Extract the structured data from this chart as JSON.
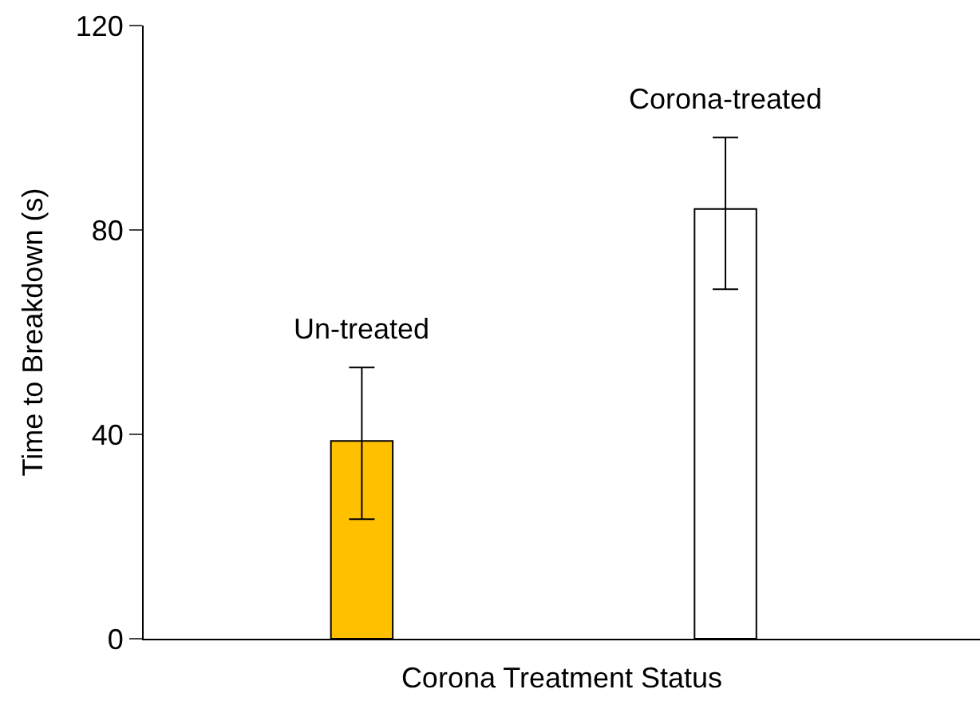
{
  "chart_data": {
    "type": "bar",
    "categories": [
      null,
      null
    ],
    "values": [
      38.7,
      84.1
    ],
    "colors": [
      "#ffc000",
      "#ffffff"
    ],
    "errors": [
      [
        23.4,
        53.1
      ],
      [
        68.4,
        98.1
      ]
    ],
    "ylim": [
      0,
      120
    ],
    "yticks": [
      0,
      40,
      80,
      120
    ],
    "xlabel": "Corona Treatment Status",
    "ylabel": "Time to Breakdown (s)",
    "annotations": [
      "Un-treated",
      "Corona-treated"
    ],
    "legend": false
  }
}
